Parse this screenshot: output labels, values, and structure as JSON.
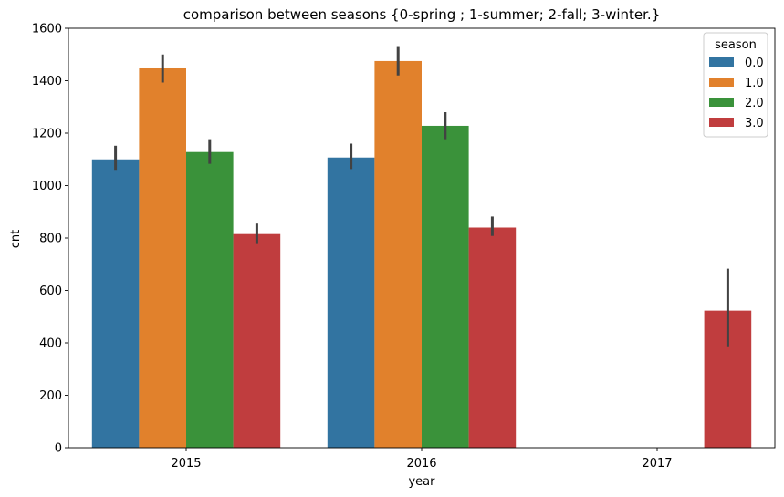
{
  "chart_data": {
    "type": "bar",
    "title": "comparison between seasons {0-spring ; 1-summer; 2-fall; 3-winter.}",
    "xlabel": "year",
    "ylabel": "cnt",
    "categories": [
      "2015",
      "2016",
      "2017"
    ],
    "ylim": [
      0,
      1600
    ],
    "yticks": [
      0,
      200,
      400,
      600,
      800,
      1000,
      1200,
      1400,
      1600
    ],
    "legend": {
      "title": "season",
      "placement": "top-right"
    },
    "series": [
      {
        "name": "0.0",
        "color": "#3274a1",
        "values": [
          1100,
          1107,
          null
        ],
        "err_low": [
          1060,
          1063,
          null
        ],
        "err_high": [
          1152,
          1160,
          null
        ]
      },
      {
        "name": "1.0",
        "color": "#e1812c",
        "values": [
          1447,
          1475,
          null
        ],
        "err_low": [
          1393,
          1420,
          null
        ],
        "err_high": [
          1500,
          1532,
          null
        ]
      },
      {
        "name": "2.0",
        "color": "#3a923a",
        "values": [
          1128,
          1228,
          null
        ],
        "err_low": [
          1083,
          1177,
          null
        ],
        "err_high": [
          1177,
          1280,
          null
        ]
      },
      {
        "name": "3.0",
        "color": "#c03d3e",
        "values": [
          815,
          840,
          523
        ],
        "err_low": [
          777,
          808,
          387
        ],
        "err_high": [
          855,
          882,
          683
        ]
      }
    ]
  }
}
